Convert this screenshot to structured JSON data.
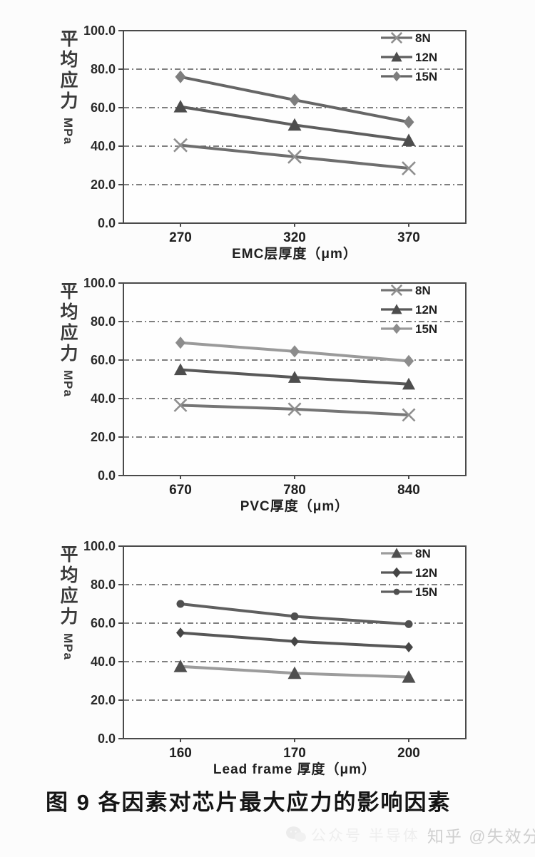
{
  "caption": "图 9 各因素对芯片最大应力的影响因素",
  "watermark": {
    "icon": "wechat-icon",
    "faint_text": "公众号 半导体",
    "main_text": "知乎 @失效分析"
  },
  "chart_data": [
    {
      "type": "line",
      "title": "",
      "ylabel_cjk": "平均应力",
      "ylabel_unit": "MPa",
      "xlabel": "EMC层厚度（μm）",
      "categories": [
        "270",
        "320",
        "370"
      ],
      "ylim": [
        0,
        100
      ],
      "yticks": [
        0,
        20,
        40,
        60,
        80,
        100
      ],
      "ytick_labels": [
        "0.0",
        "20.0",
        "40.0",
        "60.0",
        "80.0",
        "100.0"
      ],
      "grid_yticks": [
        20,
        40,
        60,
        80
      ],
      "legend_position": "top-right",
      "series": [
        {
          "name": "8N",
          "marker": "x",
          "line_color": "#6e6e6e",
          "marker_color": "#8f8f8f",
          "mscale": 1,
          "values": [
            40.5,
            34.5,
            28.5
          ]
        },
        {
          "name": "12N",
          "marker": "triangle",
          "line_color": "#5e5e5e",
          "marker_color": "#4d4d4d",
          "mscale": 1,
          "values": [
            60.5,
            51.0,
            43.0
          ]
        },
        {
          "name": "15N",
          "marker": "diamond",
          "line_color": "#666666",
          "marker_color": "#7e7e7e",
          "mscale": 1,
          "values": [
            76.0,
            64.0,
            52.5
          ]
        }
      ]
    },
    {
      "type": "line",
      "title": "",
      "ylabel_cjk": "平均应力",
      "ylabel_unit": "MPa",
      "xlabel": "PVC厚度（μm）",
      "categories": [
        "670",
        "780",
        "840"
      ],
      "ylim": [
        0,
        100
      ],
      "yticks": [
        0,
        20,
        40,
        60,
        80,
        100
      ],
      "ytick_labels": [
        "0.0",
        "20.0",
        "40.0",
        "60.0",
        "80.0",
        "100.0"
      ],
      "grid_yticks": [
        20,
        40,
        60,
        80
      ],
      "legend_position": "top-right",
      "series": [
        {
          "name": "8N",
          "marker": "x",
          "line_color": "#757575",
          "marker_color": "#8f8f8f",
          "mscale": 0.95,
          "values": [
            36.5,
            34.5,
            31.5
          ]
        },
        {
          "name": "12N",
          "marker": "triangle",
          "line_color": "#595959",
          "marker_color": "#4d4d4d",
          "mscale": 0.95,
          "values": [
            55.0,
            51.0,
            47.5
          ]
        },
        {
          "name": "15N",
          "marker": "diamond",
          "line_color": "#9a9a9a",
          "marker_color": "#8c8c8c",
          "mscale": 0.95,
          "values": [
            69.0,
            64.5,
            59.5
          ]
        }
      ]
    },
    {
      "type": "line",
      "title": "",
      "ylabel_cjk": "平均应力",
      "ylabel_unit": "MPa",
      "xlabel": "Lead frame 厚度（μm）",
      "categories": [
        "160",
        "170",
        "200"
      ],
      "ylim": [
        0,
        100
      ],
      "yticks": [
        0,
        20,
        40,
        60,
        80,
        100
      ],
      "ytick_labels": [
        "0.0",
        "20.0",
        "40.0",
        "60.0",
        "80.0",
        "100.0"
      ],
      "grid_yticks": [
        20,
        40,
        60,
        80
      ],
      "legend_position": "top-right",
      "series": [
        {
          "name": "8N",
          "marker": "triangle",
          "line_color": "#9c9c9c",
          "marker_color": "#4f4f4f",
          "mscale": 1,
          "values": [
            37.5,
            34.0,
            32.0
          ]
        },
        {
          "name": "12N",
          "marker": "diamond",
          "line_color": "#575757",
          "marker_color": "#454545",
          "mscale": 0.8,
          "values": [
            55.0,
            50.5,
            47.5
          ]
        },
        {
          "name": "15N",
          "marker": "circle",
          "line_color": "#5f5f5f",
          "marker_color": "#4f4f4f",
          "mscale": 1,
          "values": [
            70.0,
            63.5,
            59.5
          ]
        }
      ]
    }
  ]
}
